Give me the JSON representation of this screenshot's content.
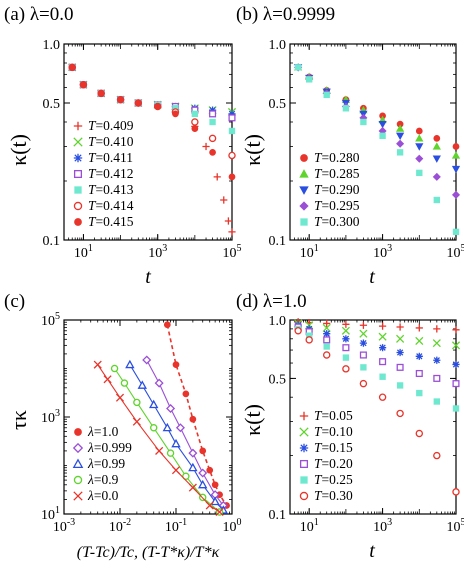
{
  "chart_data": [
    {
      "panel": "(a)",
      "title": "(a) λ=0.0",
      "type": "scatter",
      "xscale": "log",
      "yscale": "log",
      "xlim": [
        3,
        100000
      ],
      "ylim": [
        0.1,
        1.0
      ],
      "xlabel": "t",
      "ylabel": "κ(t)",
      "xticks": [
        "10^1",
        "10^3",
        "10^5"
      ],
      "yticks": [
        "1.0",
        "0.5",
        "0.1"
      ],
      "legend_position": "bottom-left",
      "legend_var": "T",
      "series": [
        {
          "name": "0.409",
          "marker": "plus",
          "color": "#e8342a",
          "x": [
            5,
            10,
            30,
            100,
            300,
            1000,
            3000,
            10000,
            20000,
            40000,
            60000,
            80000,
            100000
          ],
          "y": [
            0.76,
            0.62,
            0.56,
            0.52,
            0.5,
            0.48,
            0.45,
            0.38,
            0.3,
            0.21,
            0.16,
            0.125,
            0.11
          ]
        },
        {
          "name": "0.410",
          "marker": "x",
          "color": "#5fd42c",
          "x": [
            5,
            10,
            30,
            100,
            300,
            1000,
            3000,
            10000,
            30000,
            100000
          ],
          "y": [
            0.76,
            0.62,
            0.56,
            0.52,
            0.5,
            0.49,
            0.48,
            0.47,
            0.46,
            0.45
          ]
        },
        {
          "name": "0.411",
          "marker": "asterisk",
          "color": "#2a4fe0",
          "x": [
            5,
            10,
            30,
            100,
            300,
            1000,
            3000,
            10000,
            30000,
            100000
          ],
          "y": [
            0.76,
            0.62,
            0.56,
            0.52,
            0.5,
            0.49,
            0.48,
            0.47,
            0.46,
            0.44
          ]
        },
        {
          "name": "0.412",
          "marker": "open-square",
          "color": "#9b4fd6",
          "x": [
            5,
            10,
            30,
            100,
            300,
            1000,
            3000,
            10000,
            30000,
            100000
          ],
          "y": [
            0.76,
            0.62,
            0.56,
            0.52,
            0.5,
            0.49,
            0.48,
            0.46,
            0.44,
            0.42
          ]
        },
        {
          "name": "0.413",
          "marker": "filled-square",
          "color": "#6fe8d0",
          "x": [
            5,
            10,
            30,
            100,
            300,
            1000,
            3000,
            10000,
            30000,
            100000
          ],
          "y": [
            0.76,
            0.62,
            0.56,
            0.52,
            0.5,
            0.49,
            0.47,
            0.44,
            0.4,
            0.36
          ]
        },
        {
          "name": "0.414",
          "marker": "open-circle",
          "color": "#e8342a",
          "x": [
            5,
            10,
            30,
            100,
            300,
            1000,
            3000,
            10000,
            30000,
            100000
          ],
          "y": [
            0.76,
            0.62,
            0.56,
            0.52,
            0.5,
            0.48,
            0.45,
            0.4,
            0.33,
            0.27
          ]
        },
        {
          "name": "0.415",
          "marker": "filled-circle",
          "color": "#e8342a",
          "x": [
            5,
            10,
            30,
            100,
            300,
            1000,
            3000,
            10000,
            30000,
            100000
          ],
          "y": [
            0.76,
            0.62,
            0.56,
            0.52,
            0.5,
            0.48,
            0.44,
            0.37,
            0.28,
            0.21
          ]
        }
      ]
    },
    {
      "panel": "(b)",
      "title": "(b) λ=0.9999",
      "type": "scatter",
      "xscale": "log",
      "yscale": "log",
      "xlim": [
        3,
        100000
      ],
      "ylim": [
        0.1,
        1.0
      ],
      "xlabel": "t",
      "ylabel": "κ(t)",
      "xticks": [
        "10^1",
        "10^3",
        "10^5"
      ],
      "yticks": [
        "1.0",
        "0.5",
        "0.1"
      ],
      "legend_position": "bottom-left",
      "legend_var": "T",
      "series": [
        {
          "name": "0.280",
          "marker": "filled-circle",
          "color": "#e8342a",
          "x": [
            5,
            10,
            30,
            100,
            300,
            1000,
            3000,
            10000,
            30000,
            100000
          ],
          "y": [
            0.76,
            0.68,
            0.58,
            0.52,
            0.47,
            0.43,
            0.39,
            0.36,
            0.33,
            0.3
          ]
        },
        {
          "name": "0.285",
          "marker": "filled-triangle",
          "color": "#5fd42c",
          "x": [
            5,
            10,
            30,
            100,
            300,
            1000,
            3000,
            10000,
            30000,
            100000
          ],
          "y": [
            0.76,
            0.68,
            0.58,
            0.52,
            0.46,
            0.41,
            0.37,
            0.33,
            0.3,
            0.27
          ]
        },
        {
          "name": "0.290",
          "marker": "filled-triangle-down",
          "color": "#2a4fe0",
          "x": [
            5,
            10,
            30,
            100,
            300,
            1000,
            3000,
            10000,
            30000,
            100000
          ],
          "y": [
            0.76,
            0.67,
            0.57,
            0.5,
            0.44,
            0.39,
            0.34,
            0.3,
            0.26,
            0.23
          ]
        },
        {
          "name": "0.295",
          "marker": "filled-diamond",
          "color": "#9b4fd6",
          "x": [
            5,
            10,
            30,
            100,
            300,
            1000,
            3000,
            10000,
            30000,
            100000
          ],
          "y": [
            0.76,
            0.67,
            0.56,
            0.48,
            0.42,
            0.36,
            0.31,
            0.26,
            0.21,
            0.17
          ]
        },
        {
          "name": "0.300",
          "marker": "filled-square",
          "color": "#6fe8d0",
          "x": [
            5,
            10,
            30,
            100,
            300,
            1000,
            3000,
            10000,
            30000,
            100000
          ],
          "y": [
            0.76,
            0.66,
            0.55,
            0.47,
            0.4,
            0.34,
            0.28,
            0.22,
            0.16,
            0.11
          ]
        }
      ]
    },
    {
      "panel": "(c)",
      "title": "(c)",
      "type": "scatter",
      "xscale": "log",
      "yscale": "log",
      "xlim": [
        0.001,
        1
      ],
      "ylim": [
        10,
        100000
      ],
      "xlabel": "(T-Tc)/Tc, (T-T*κ)/T*κ",
      "ylabel": "τκ",
      "xticks": [
        "10^-3",
        "10^-2",
        "10^-1",
        "10^0"
      ],
      "yticks": [
        "10^5",
        "10^3",
        "10^1"
      ],
      "legend_position": "bottom-left",
      "legend_var": "λ",
      "series": [
        {
          "name": "1.0",
          "marker": "filled-circle",
          "color": "#e8342a",
          "line": "dashed",
          "x": [
            0.07,
            0.1,
            0.15,
            0.2,
            0.3,
            0.4,
            0.5,
            0.6,
            0.8
          ],
          "y": [
            80000,
            12000,
            3000,
            900,
            200,
            80,
            40,
            25,
            15
          ]
        },
        {
          "name": "0.999",
          "marker": "open-diamond",
          "color": "#9b4fd6",
          "line": "solid",
          "x": [
            0.03,
            0.05,
            0.08,
            0.12,
            0.2,
            0.3,
            0.5,
            0.7
          ],
          "y": [
            15000,
            5000,
            1500,
            600,
            180,
            70,
            25,
            15
          ]
        },
        {
          "name": "0.99",
          "marker": "open-triangle",
          "color": "#2a4fe0",
          "line": "solid",
          "x": [
            0.015,
            0.025,
            0.04,
            0.07,
            0.1,
            0.2,
            0.3,
            0.5,
            0.7
          ],
          "y": [
            12000,
            4500,
            1800,
            600,
            280,
            90,
            40,
            18,
            12
          ]
        },
        {
          "name": "0.9",
          "marker": "open-circle",
          "color": "#5fd42c",
          "line": "solid",
          "x": [
            0.008,
            0.012,
            0.02,
            0.04,
            0.08,
            0.15,
            0.3,
            0.6
          ],
          "y": [
            10000,
            5000,
            2000,
            600,
            180,
            60,
            22,
            11
          ]
        },
        {
          "name": "0.0",
          "marker": "x",
          "color": "#e8342a",
          "line": "solid",
          "x": [
            0.004,
            0.006,
            0.01,
            0.02,
            0.05,
            0.1,
            0.2,
            0.4,
            0.6
          ],
          "y": [
            12000,
            6000,
            2500,
            800,
            200,
            80,
            35,
            15,
            11
          ]
        }
      ]
    },
    {
      "panel": "(d)",
      "title": "(d) λ=1.0",
      "type": "scatter",
      "xscale": "log",
      "yscale": "log",
      "xlim": [
        3,
        100000
      ],
      "ylim": [
        0.1,
        1.0
      ],
      "xlabel": "t",
      "ylabel": "κ(t)",
      "xticks": [
        "10^1",
        "10^3",
        "10^5"
      ],
      "yticks": [
        "1.0",
        "0.5",
        "0.1"
      ],
      "legend_position": "bottom-left",
      "legend_var": "T",
      "series": [
        {
          "name": "0.05",
          "marker": "plus",
          "color": "#e8342a",
          "x": [
            5,
            10,
            30,
            100,
            300,
            1000,
            3000,
            10000,
            30000,
            100000
          ],
          "y": [
            0.98,
            0.97,
            0.96,
            0.95,
            0.94,
            0.93,
            0.92,
            0.91,
            0.9,
            0.89
          ]
        },
        {
          "name": "0.10",
          "marker": "x",
          "color": "#5fd42c",
          "x": [
            5,
            10,
            30,
            100,
            300,
            1000,
            3000,
            10000,
            30000,
            100000
          ],
          "y": [
            0.96,
            0.94,
            0.91,
            0.88,
            0.85,
            0.82,
            0.8,
            0.78,
            0.76,
            0.74
          ]
        },
        {
          "name": "0.15",
          "marker": "asterisk",
          "color": "#2a4fe0",
          "x": [
            5,
            10,
            30,
            100,
            300,
            1000,
            3000,
            10000,
            30000,
            100000
          ],
          "y": [
            0.94,
            0.9,
            0.85,
            0.8,
            0.76,
            0.72,
            0.68,
            0.65,
            0.62,
            0.59
          ]
        },
        {
          "name": "0.20",
          "marker": "open-square",
          "color": "#9b4fd6",
          "x": [
            5,
            10,
            30,
            100,
            300,
            1000,
            3000,
            10000,
            30000,
            100000
          ],
          "y": [
            0.92,
            0.87,
            0.79,
            0.72,
            0.66,
            0.61,
            0.57,
            0.53,
            0.5,
            0.47
          ]
        },
        {
          "name": "0.25",
          "marker": "filled-square",
          "color": "#6fe8d0",
          "x": [
            5,
            10,
            30,
            100,
            300,
            1000,
            3000,
            10000,
            30000,
            100000
          ],
          "y": [
            0.9,
            0.83,
            0.73,
            0.64,
            0.57,
            0.51,
            0.46,
            0.42,
            0.38,
            0.35
          ]
        },
        {
          "name": "0.30",
          "marker": "open-circle",
          "color": "#e8342a",
          "x": [
            5,
            10,
            30,
            100,
            300,
            1000,
            3000,
            10000,
            30000,
            100000
          ],
          "y": [
            0.88,
            0.79,
            0.66,
            0.56,
            0.47,
            0.4,
            0.33,
            0.26,
            0.2,
            0.13
          ]
        }
      ]
    }
  ]
}
